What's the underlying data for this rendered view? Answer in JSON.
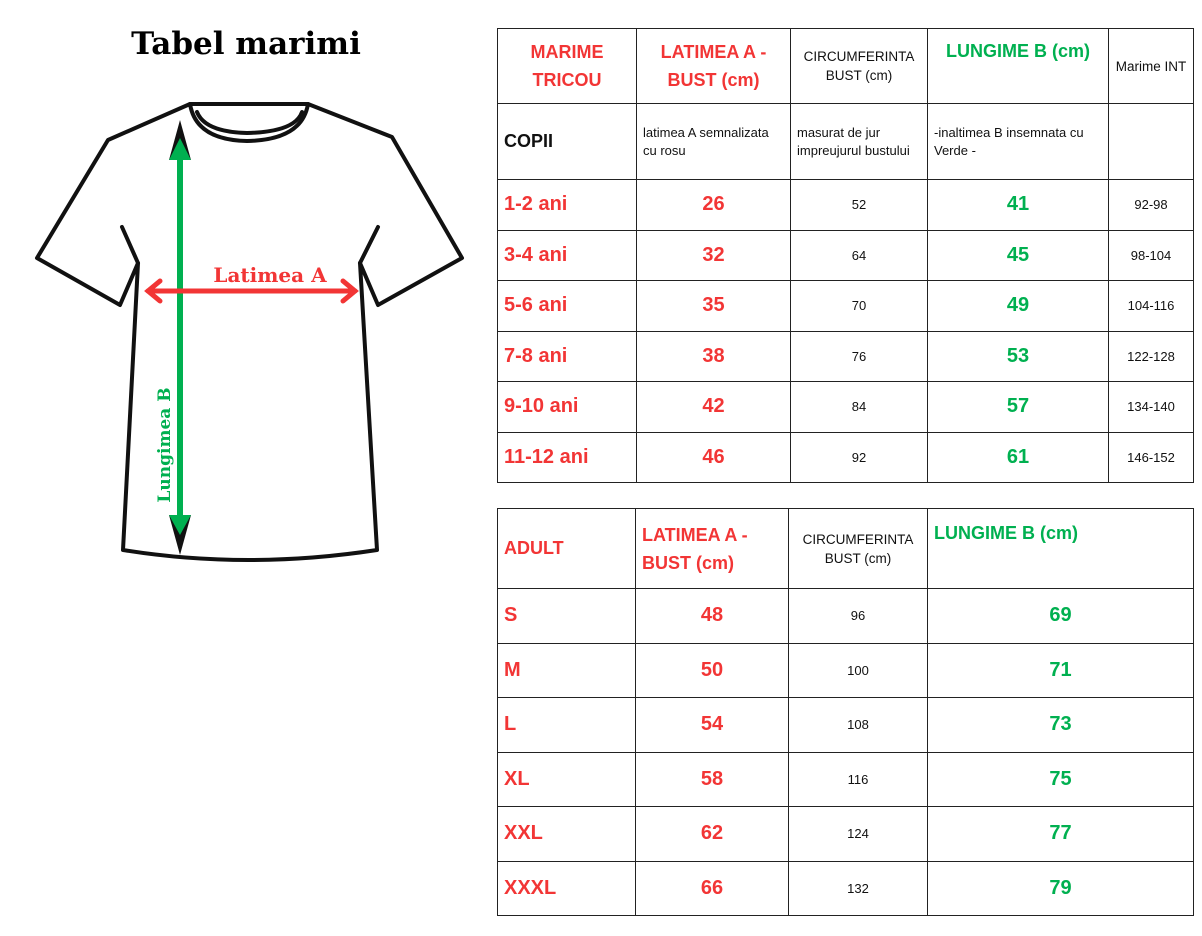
{
  "title": "Tabel marimi",
  "diagram": {
    "width_label": "Latimea A",
    "length_label": "Lungimea  B"
  },
  "colors": {
    "red": "#f23535",
    "green": "#00b050"
  },
  "kids_table": {
    "headers": [
      "MARIME TRICOU",
      "LATIMEA A - BUST (cm)",
      "CIRCUMFERINTA BUST (cm)",
      "LUNGIME B (cm)",
      "Marime INT"
    ],
    "notes": [
      "COPII",
      "latimea A semnalizata cu rosu",
      "masurat de jur impreujurul bustului",
      "-inaltimea B insemnata cu Verde -",
      ""
    ],
    "rows": [
      [
        "1-2 ani",
        "26",
        "52",
        "41",
        "92-98"
      ],
      [
        "3-4 ani",
        "32",
        "64",
        "45",
        "98-104"
      ],
      [
        "5-6 ani",
        "35",
        "70",
        "49",
        "104-116"
      ],
      [
        "7-8 ani",
        "38",
        "76",
        "53",
        "122-128"
      ],
      [
        "9-10 ani",
        "42",
        "84",
        "57",
        "134-140"
      ],
      [
        "11-12 ani",
        "46",
        "92",
        "61",
        "146-152"
      ]
    ]
  },
  "adult_table": {
    "headers": [
      "ADULT",
      "LATIMEA A - BUST (cm)",
      "CIRCUMFERINTA BUST (cm)",
      "LUNGIME B (cm)"
    ],
    "rows": [
      [
        "S",
        "48",
        "96",
        "69"
      ],
      [
        "M",
        "50",
        "100",
        "71"
      ],
      [
        "L",
        "54",
        "108",
        "73"
      ],
      [
        "XL",
        "58",
        "116",
        "75"
      ],
      [
        "XXL",
        "62",
        "124",
        "77"
      ],
      [
        "XXXL",
        "66",
        "132",
        "79"
      ]
    ]
  }
}
